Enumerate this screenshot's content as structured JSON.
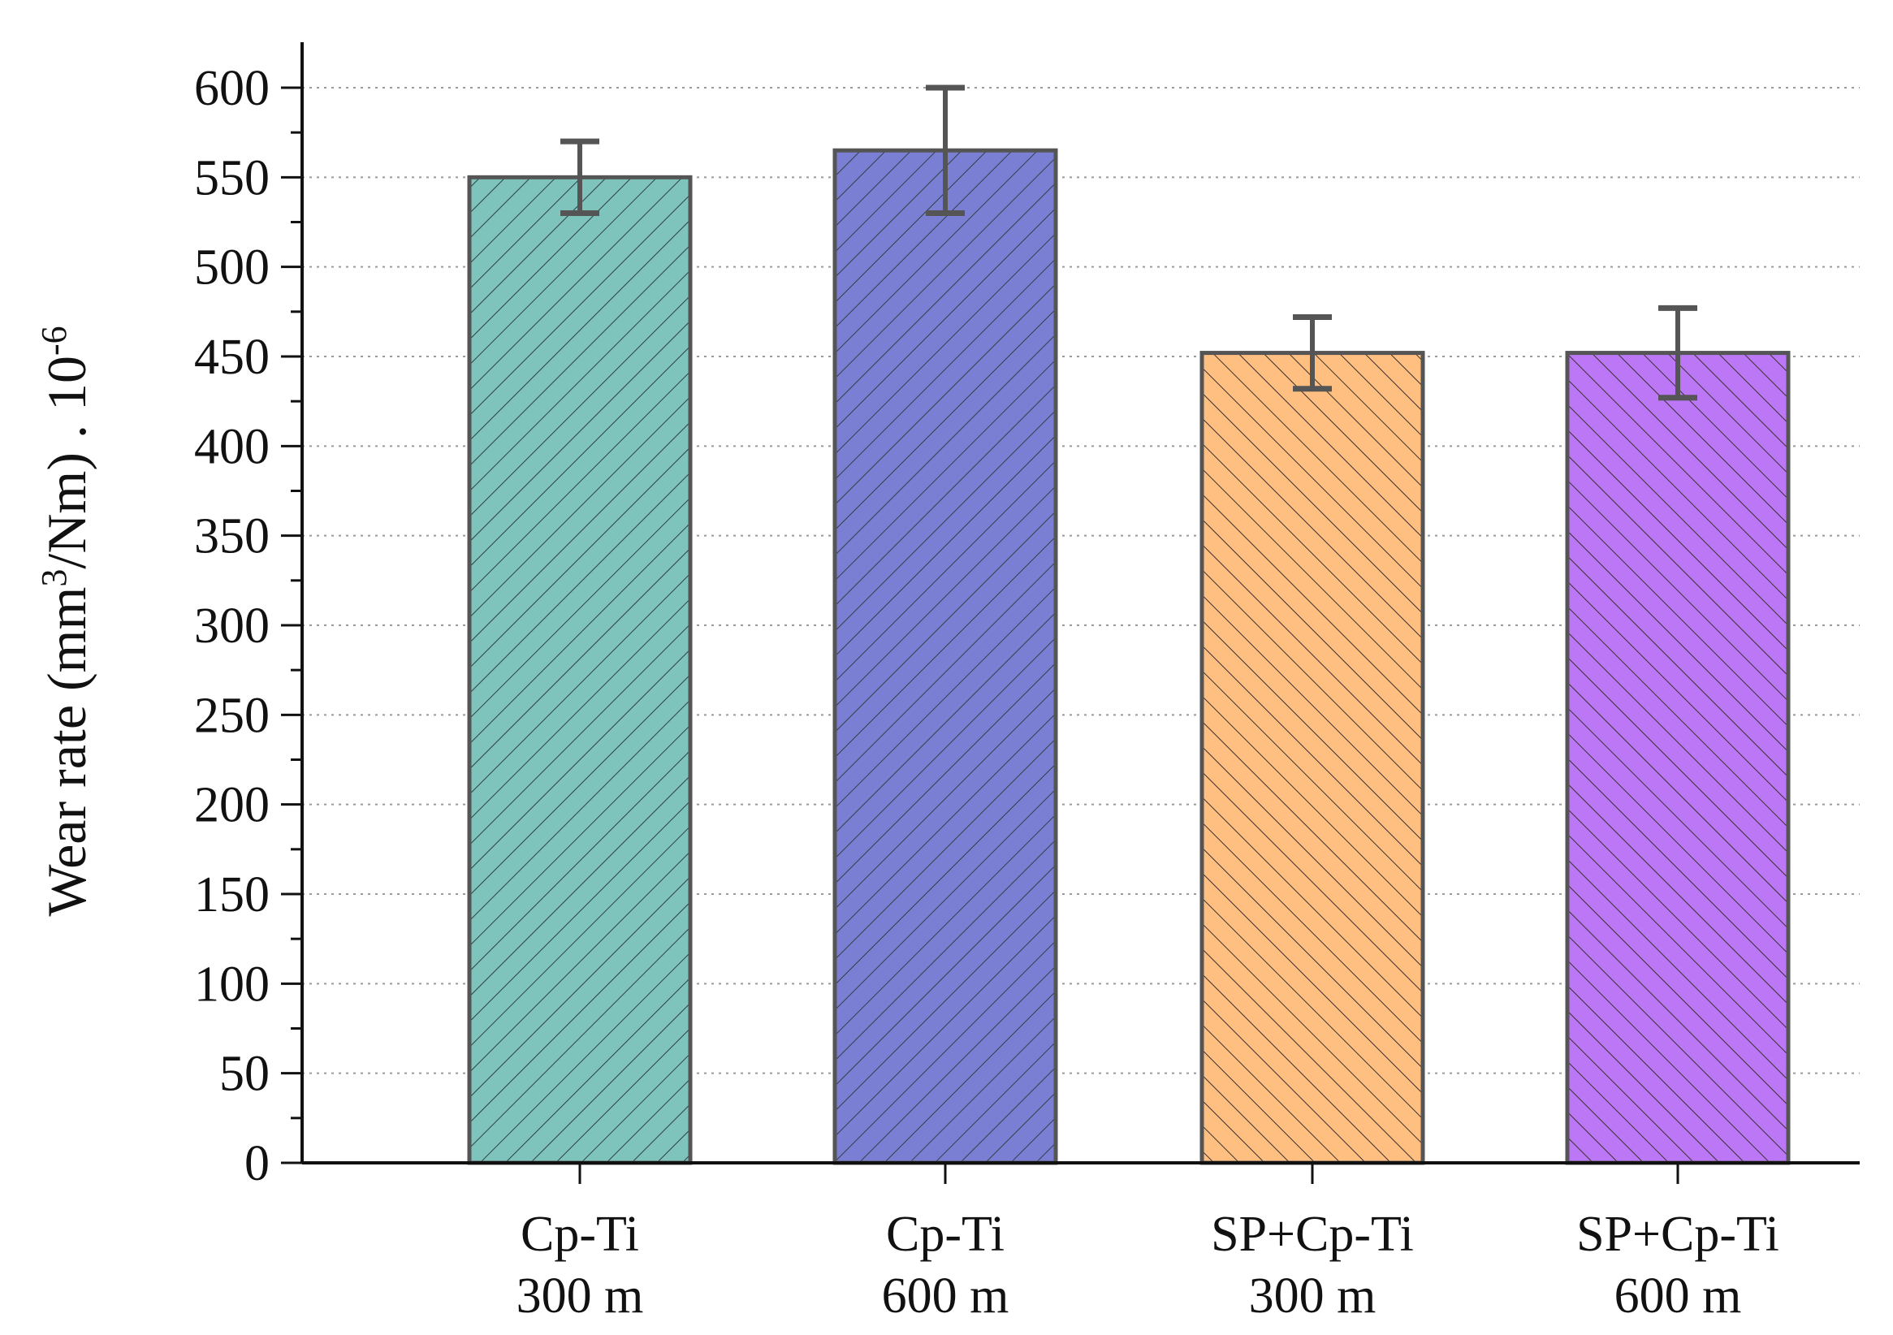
{
  "chart_data": {
    "type": "bar",
    "categories": [
      [
        "Cp-Ti",
        "300 m"
      ],
      [
        "Cp-Ti",
        "600 m"
      ],
      [
        "SP+Cp-Ti",
        "300 m"
      ],
      [
        "SP+Cp-Ti",
        "600 m"
      ]
    ],
    "values": [
      550,
      565,
      452,
      452
    ],
    "errors": [
      20,
      35,
      20,
      25
    ],
    "bar_colors": [
      "#7ec4bd",
      "#7b7fd4",
      "#ffbf80",
      "#bb77f5"
    ],
    "hatch": [
      "forward",
      "forward",
      "backward",
      "backward"
    ],
    "title": "",
    "xlabel": "",
    "ylabel": {
      "prefix": "Wear rate (mm",
      "sup": "3",
      "middle": "/Nm) . 10",
      "exp": "-6"
    },
    "ylim": [
      0,
      625
    ],
    "yticks": [
      "0",
      "50",
      "100",
      "150",
      "200",
      "250",
      "300",
      "350",
      "400",
      "450",
      "500",
      "550",
      "600"
    ],
    "ytick_values": [
      0,
      50,
      100,
      150,
      200,
      250,
      300,
      350,
      400,
      450,
      500,
      550,
      600
    ],
    "grid": "horizontal dotted",
    "legend": "none"
  }
}
